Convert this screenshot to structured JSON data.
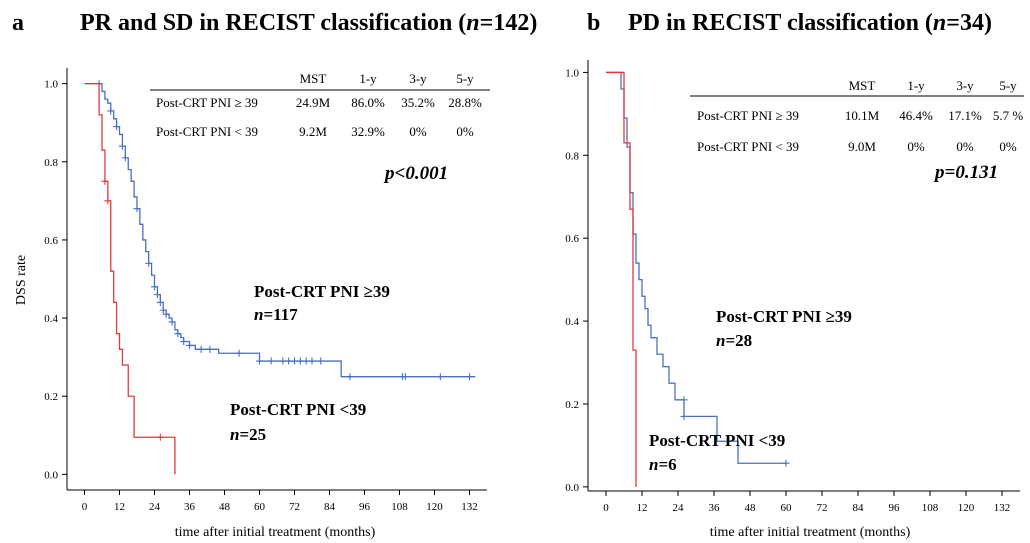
{
  "chart_data": [
    {
      "type": "line",
      "panel_letter": "a",
      "title": "PR and SD in RECIST classification (n=142)",
      "title_prefix": "PR and SD in RECIST classification (",
      "title_n": "n",
      "title_suffix": "=142)",
      "xlabel": "time after initial treatment (months)",
      "ylabel": "DSS rate",
      "xlim": [
        -6,
        138
      ],
      "ylim": [
        -0.04,
        1.04
      ],
      "xticks": [
        0,
        12,
        24,
        36,
        48,
        60,
        72,
        84,
        96,
        108,
        120,
        132
      ],
      "yticks": [
        0.0,
        0.2,
        0.4,
        0.6,
        0.8,
        1.0
      ],
      "table": {
        "headers": [
          "MST",
          "1-y",
          "3-y",
          "5-y"
        ],
        "rows": [
          {
            "label": "Post-CRT PNI ≥ 39",
            "values": [
              "24.9M",
              "86.0%",
              "35.2%",
              "28.8%"
            ]
          },
          {
            "label": "Post-CRT PNI < 39",
            "values": [
              "9.2M",
              "32.9%",
              "0%",
              "0%"
            ]
          }
        ]
      },
      "p_value": "p<0.001",
      "series": [
        {
          "name": "Post-CRT PNI ≥39",
          "n_label": "=117",
          "color": "#4a6fc4",
          "x": [
            0,
            4,
            6,
            7,
            8,
            9,
            10,
            11,
            12,
            13,
            14,
            15,
            16,
            17,
            18,
            19,
            20,
            21,
            22,
            23,
            24,
            25,
            26,
            27,
            28,
            29,
            30,
            31,
            32,
            33,
            34,
            36,
            38,
            42,
            46,
            52,
            60,
            72,
            84,
            88,
            100,
            110,
            122,
            134
          ],
          "y": [
            1.0,
            1.0,
            0.98,
            0.96,
            0.95,
            0.93,
            0.91,
            0.89,
            0.87,
            0.84,
            0.81,
            0.78,
            0.75,
            0.71,
            0.68,
            0.64,
            0.6,
            0.57,
            0.54,
            0.51,
            0.48,
            0.46,
            0.44,
            0.42,
            0.41,
            0.4,
            0.39,
            0.37,
            0.36,
            0.35,
            0.34,
            0.33,
            0.32,
            0.32,
            0.31,
            0.31,
            0.29,
            0.29,
            0.29,
            0.25,
            0.25,
            0.25,
            0.25,
            0.25
          ],
          "censor_x": [
            5,
            9,
            11,
            13,
            14,
            18,
            22,
            24,
            25,
            26,
            27,
            28,
            30,
            32,
            34,
            36,
            40,
            43,
            53,
            60,
            64,
            68,
            70,
            72,
            74,
            76,
            78,
            81,
            91,
            109,
            110,
            122,
            132
          ],
          "censor_y": [
            1.0,
            0.93,
            0.89,
            0.84,
            0.81,
            0.68,
            0.54,
            0.48,
            0.46,
            0.44,
            0.42,
            0.41,
            0.39,
            0.36,
            0.34,
            0.33,
            0.32,
            0.32,
            0.31,
            0.29,
            0.29,
            0.29,
            0.29,
            0.29,
            0.29,
            0.29,
            0.29,
            0.29,
            0.25,
            0.25,
            0.25,
            0.25,
            0.25
          ]
        },
        {
          "name": "Post-CRT PNI <39",
          "n_label": "=25",
          "color": "#e03c3c",
          "x": [
            0,
            4,
            5,
            6,
            7,
            8,
            9,
            10,
            11,
            12,
            13,
            15,
            17,
            31
          ],
          "y": [
            1.0,
            1.0,
            0.92,
            0.83,
            0.75,
            0.7,
            0.52,
            0.44,
            0.36,
            0.32,
            0.28,
            0.2,
            0.095,
            0.0
          ],
          "censor_x": [
            7,
            8,
            26
          ],
          "censor_y": [
            0.75,
            0.7,
            0.095
          ]
        }
      ]
    },
    {
      "type": "line",
      "panel_letter": "b",
      "title": "PD in RECIST classification (n=34)",
      "title_prefix": "PD in RECIST classification (",
      "title_n": "n",
      "title_suffix": "=34)",
      "xlabel": "time after initial treatment (months)",
      "ylabel": "",
      "xlim": [
        -6,
        138
      ],
      "ylim": [
        -0.01,
        1.03
      ],
      "xticks": [
        0,
        12,
        24,
        36,
        48,
        60,
        72,
        84,
        96,
        108,
        120,
        132
      ],
      "yticks": [
        0.0,
        0.2,
        0.4,
        0.6,
        0.8,
        1.0
      ],
      "table": {
        "headers": [
          "MST",
          "1-y",
          "3-y",
          "5-y"
        ],
        "rows": [
          {
            "label": "Post-CRT PNI ≥ 39",
            "values": [
              "10.1M",
              "46.4%",
              "17.1%",
              "5.7 %"
            ]
          },
          {
            "label": "Post-CRT PNI < 39",
            "values": [
              "9.0M",
              "0%",
              "0%",
              "0%"
            ]
          }
        ]
      },
      "p_value": "p=0.131",
      "series": [
        {
          "name": "Post-CRT PNI ≥39",
          "n_label": "=28",
          "color": "#4a6fc4",
          "x": [
            0,
            4,
            5,
            6,
            7,
            8,
            9,
            10,
            11,
            12,
            13,
            14,
            15,
            17,
            19,
            21,
            23,
            26,
            32,
            37,
            44,
            60
          ],
          "y": [
            1.0,
            1.0,
            0.96,
            0.89,
            0.82,
            0.71,
            0.61,
            0.54,
            0.5,
            0.46,
            0.43,
            0.39,
            0.36,
            0.32,
            0.29,
            0.25,
            0.21,
            0.17,
            0.17,
            0.11,
            0.057,
            0.057
          ],
          "censor_x": [
            26,
            26,
            60
          ],
          "censor_y": [
            0.21,
            0.17,
            0.057
          ]
        },
        {
          "name": "Post-CRT PNI <39",
          "n_label": "=6",
          "color": "#e03c3c",
          "x": [
            0,
            4,
            6,
            8,
            9,
            10,
            10
          ],
          "y": [
            1.0,
            1.0,
            0.83,
            0.67,
            0.33,
            0.17,
            0.0
          ],
          "censor_x": [],
          "censor_y": []
        }
      ]
    }
  ]
}
